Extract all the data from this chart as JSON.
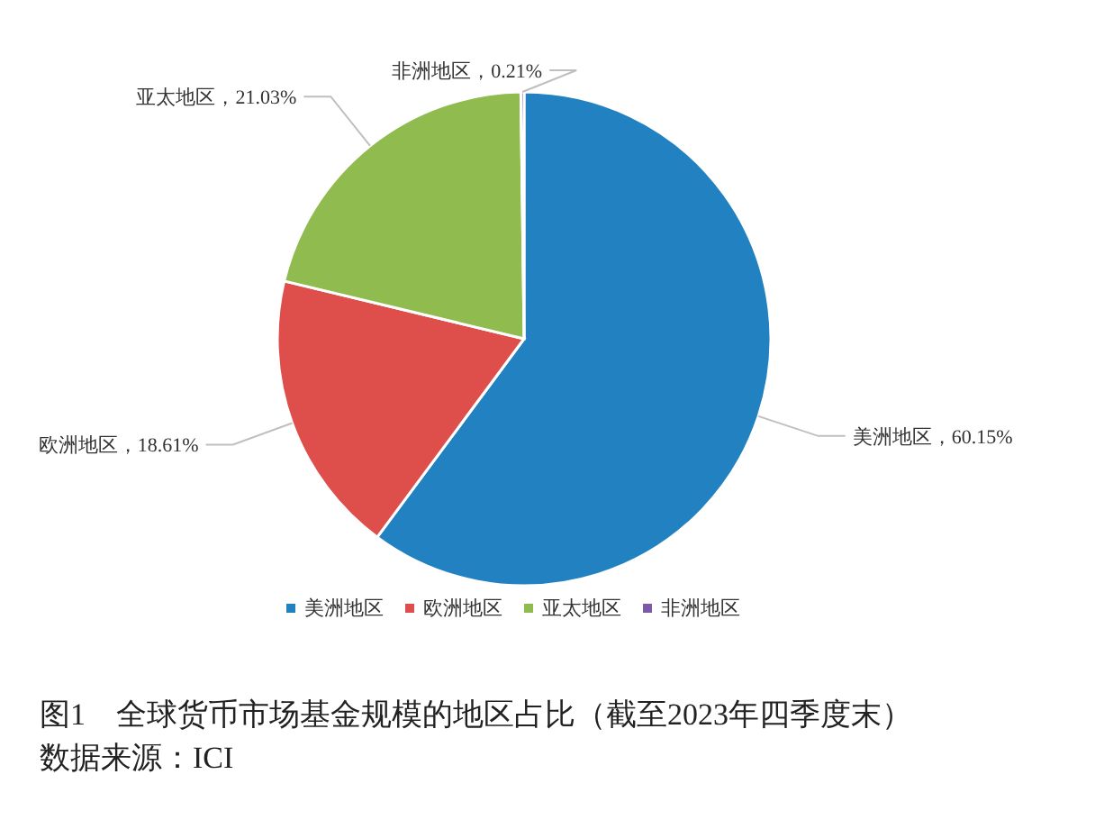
{
  "chart_data": {
    "type": "pie",
    "title": "图1　全球货币市场基金规模的地区占比（截至2023年四季度末）",
    "annotations": [
      "数据来源：ICI"
    ],
    "categories": [
      "美洲地区",
      "欧洲地区",
      "亚太地区",
      "非洲地区"
    ],
    "values": [
      60.15,
      18.61,
      21.03,
      0.21
    ],
    "colors": [
      "#2281c1",
      "#de4f4c",
      "#8fbb4f",
      "#7d5aa6"
    ],
    "value_labels": [
      "美洲地区，60.15%",
      "欧洲地区，18.61%",
      "亚太地区，21.03%",
      "非洲地区，0.21%"
    ],
    "legend": "bottom"
  }
}
